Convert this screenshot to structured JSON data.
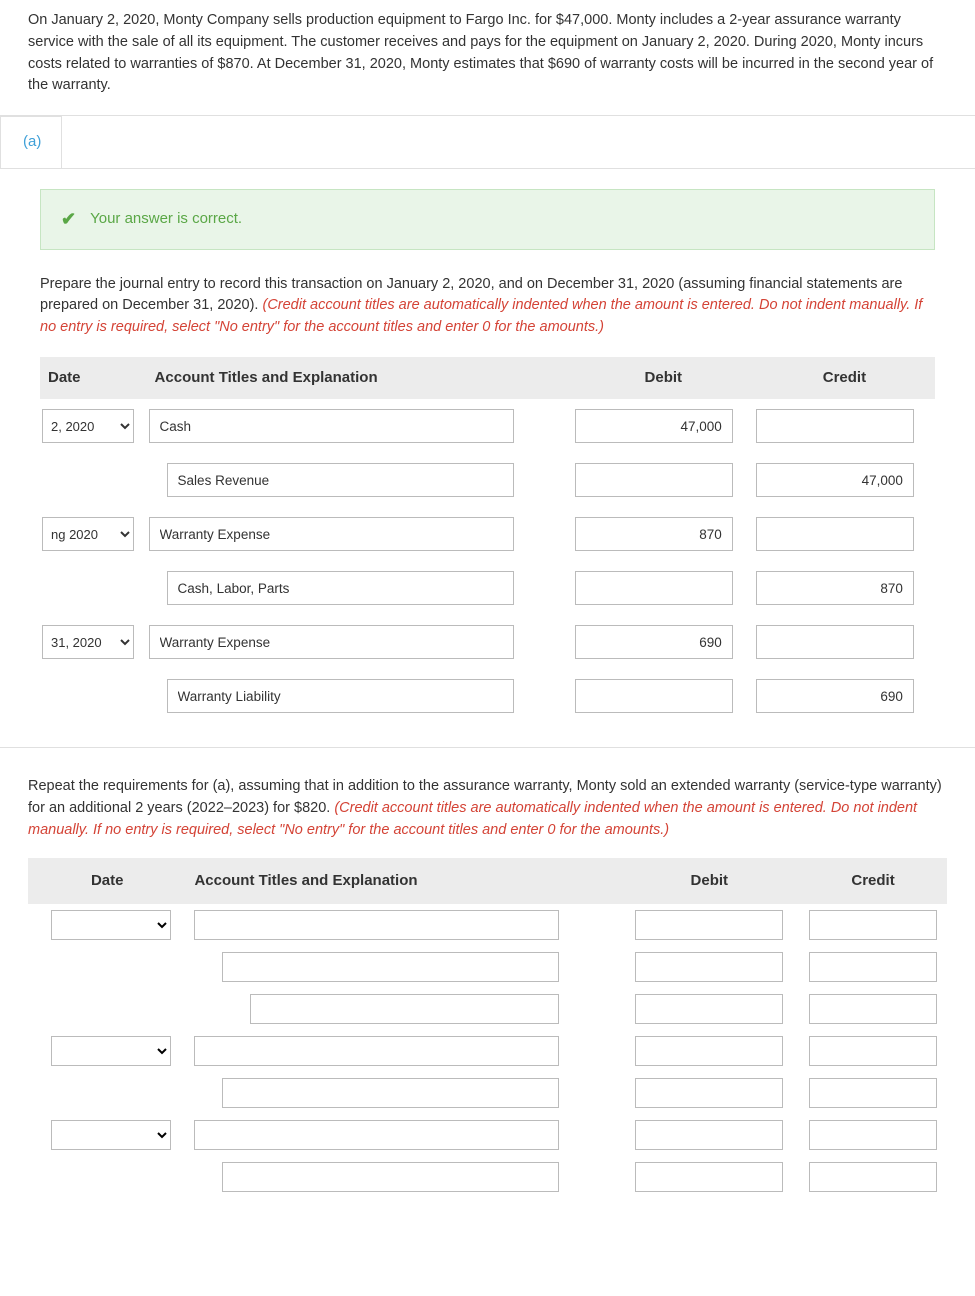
{
  "problem": {
    "text": "On January 2, 2020, Monty Company sells production equipment to Fargo Inc. for $47,000. Monty includes a 2-year assurance warranty service with the sale of all its equipment. The customer receives and pays for the equipment on January 2, 2020. During 2020, Monty incurs costs related to warranties of $870. At December 31, 2020, Monty estimates that $690 of warranty costs will be incurred in the second year of the warranty."
  },
  "part_a": {
    "label": "(a)",
    "banner": "Your answer is correct.",
    "instruction_plain": "Prepare the journal entry to record this transaction on January 2, 2020, and on December 31, 2020 (assuming financial statements are prepared on December 31, 2020). ",
    "instruction_red": "(Credit account titles are automatically indented when the amount is entered. Do not indent manually. If no entry is required, select \"No entry\" for the account titles and enter 0 for the amounts.)",
    "headers": {
      "date": "Date",
      "account": "Account Titles and Explanation",
      "debit": "Debit",
      "credit": "Credit"
    },
    "rows": [
      {
        "date": "2, 2020",
        "account": "Cash",
        "indent": 0,
        "debit": "47,000",
        "credit": ""
      },
      {
        "date": "",
        "account": "Sales Revenue",
        "indent": 1,
        "debit": "",
        "credit": "47,000"
      },
      {
        "date": "ng 2020",
        "account": "Warranty Expense",
        "indent": 0,
        "debit": "870",
        "credit": ""
      },
      {
        "date": "",
        "account": "Cash, Labor, Parts",
        "indent": 1,
        "debit": "",
        "credit": "870"
      },
      {
        "date": "31, 2020",
        "account": "Warranty Expense",
        "indent": 0,
        "debit": "690",
        "credit": ""
      },
      {
        "date": "",
        "account": "Warranty Liability",
        "indent": 1,
        "debit": "",
        "credit": "690"
      }
    ]
  },
  "part_b": {
    "instruction_plain": "Repeat the requirements for (a), assuming that in addition to the assurance warranty, Monty sold an extended warranty (service-type warranty) for an additional 2 years (2022–2023) for $820. ",
    "instruction_red": "(Credit account titles are automatically indented when the amount is entered. Do not indent manually. If no entry is required, select \"No entry\" for the account titles and enter 0 for the amounts.)",
    "headers": {
      "date": "Date",
      "account": "Account Titles and Explanation",
      "debit": "Debit",
      "credit": "Credit"
    },
    "rows": [
      {
        "show_date": true,
        "indent": 0
      },
      {
        "show_date": false,
        "indent": 1
      },
      {
        "show_date": false,
        "indent": 2
      },
      {
        "show_date": true,
        "indent": 0
      },
      {
        "show_date": false,
        "indent": 1
      },
      {
        "show_date": true,
        "indent": 0
      },
      {
        "show_date": false,
        "indent": 1
      }
    ]
  },
  "colors": {
    "banner_bg": "#e9f5e8",
    "banner_border": "#c6e5c2",
    "banner_text": "#5aa746",
    "tab_text": "#3fa0d8",
    "header_bg": "#ececec",
    "red_text": "#d44336",
    "input_border": "#bbbbbb"
  }
}
